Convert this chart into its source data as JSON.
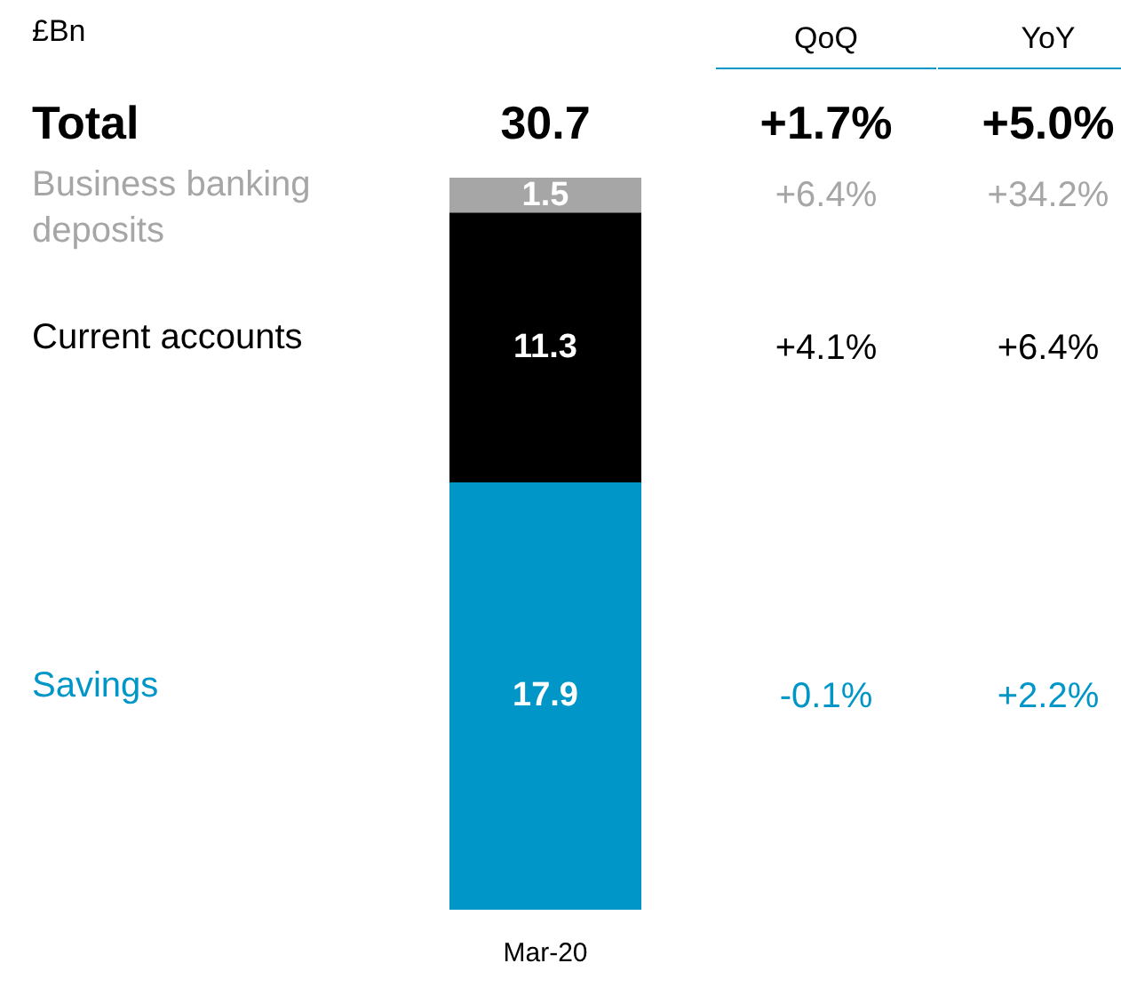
{
  "chart_data": {
    "type": "bar",
    "stacked": true,
    "categories": [
      "Mar-20"
    ],
    "series": [
      {
        "name": "Savings",
        "color": "#0096c8",
        "values": [
          17.9
        ]
      },
      {
        "name": "Current accounts",
        "color": "#000000",
        "values": [
          11.3
        ]
      },
      {
        "name": "Business banking deposits",
        "color": "#a6a6a6",
        "values": [
          1.5
        ]
      }
    ],
    "data_labels": true,
    "totals": [
      "30.7"
    ],
    "legend": false,
    "grid": false,
    "annotations": [
      "£Bn",
      "QoQ",
      "YoY",
      "Total",
      "+1.7%",
      "+5.0%",
      "+6.4%",
      "+34.2%",
      "+4.1%",
      "+6.4%",
      "-0.1%",
      "+2.2%"
    ]
  }
}
